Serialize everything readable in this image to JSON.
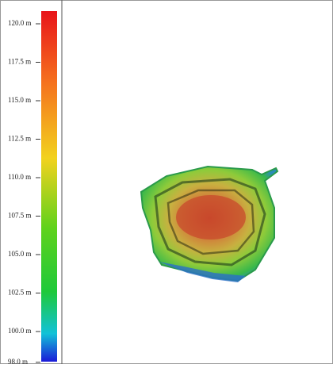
{
  "scale": {
    "ticks": [
      {
        "value": 120,
        "label": "120.0 m"
      },
      {
        "value": 117.5,
        "label": "117.5 m"
      },
      {
        "value": 115,
        "label": "115.0 m"
      },
      {
        "value": 112.5,
        "label": "112.5 m"
      },
      {
        "value": 110,
        "label": "110.0 m"
      },
      {
        "value": 107.5,
        "label": "107.5 m"
      },
      {
        "value": 105,
        "label": "105.0 m"
      },
      {
        "value": 102.5,
        "label": "102.5 m"
      },
      {
        "value": 100,
        "label": "100.0 m"
      },
      {
        "value": 98,
        "label": "98.0 m"
      }
    ]
  }
}
